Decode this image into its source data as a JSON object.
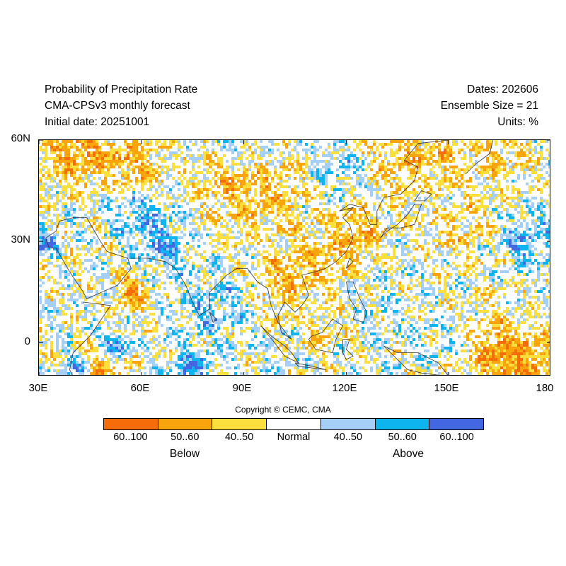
{
  "header": {
    "title": "Probability of Precipitation Rate",
    "model": "CMA-CPSv3 monthly forecast",
    "initial_date": "Initial date: 20251001",
    "dates": "Dates: 202606",
    "ensemble": "Ensemble Size = 21",
    "units": "Units: %"
  },
  "map": {
    "lon_range": [
      30,
      180
    ],
    "lat_range": [
      -10,
      60
    ],
    "lat_ticks": [
      {
        "value": 60,
        "label": "60N"
      },
      {
        "value": 30,
        "label": "30N"
      },
      {
        "value": 0,
        "label": "0"
      }
    ],
    "lon_ticks": [
      {
        "value": 30,
        "label": "30E"
      },
      {
        "value": 60,
        "label": "60E"
      },
      {
        "value": 90,
        "label": "90E"
      },
      {
        "value": 120,
        "label": "120E"
      },
      {
        "value": 150,
        "label": "150E"
      },
      {
        "value": 180,
        "label": "180"
      }
    ]
  },
  "copyright": "Copyright © CEMC, CMA",
  "legend": {
    "categories": [
      {
        "label": "60..100",
        "color": "#f46d0a"
      },
      {
        "label": "50..60",
        "color": "#f9a40c"
      },
      {
        "label": "40..50",
        "color": "#fbdf3c"
      },
      {
        "label": "Normal",
        "color": "#ffffff"
      },
      {
        "label": "40..50",
        "color": "#a6cff7"
      },
      {
        "label": "50..60",
        "color": "#0db4ee"
      },
      {
        "label": "60..100",
        "color": "#4367e0"
      }
    ],
    "below_label": "Below",
    "above_label": "Above"
  }
}
